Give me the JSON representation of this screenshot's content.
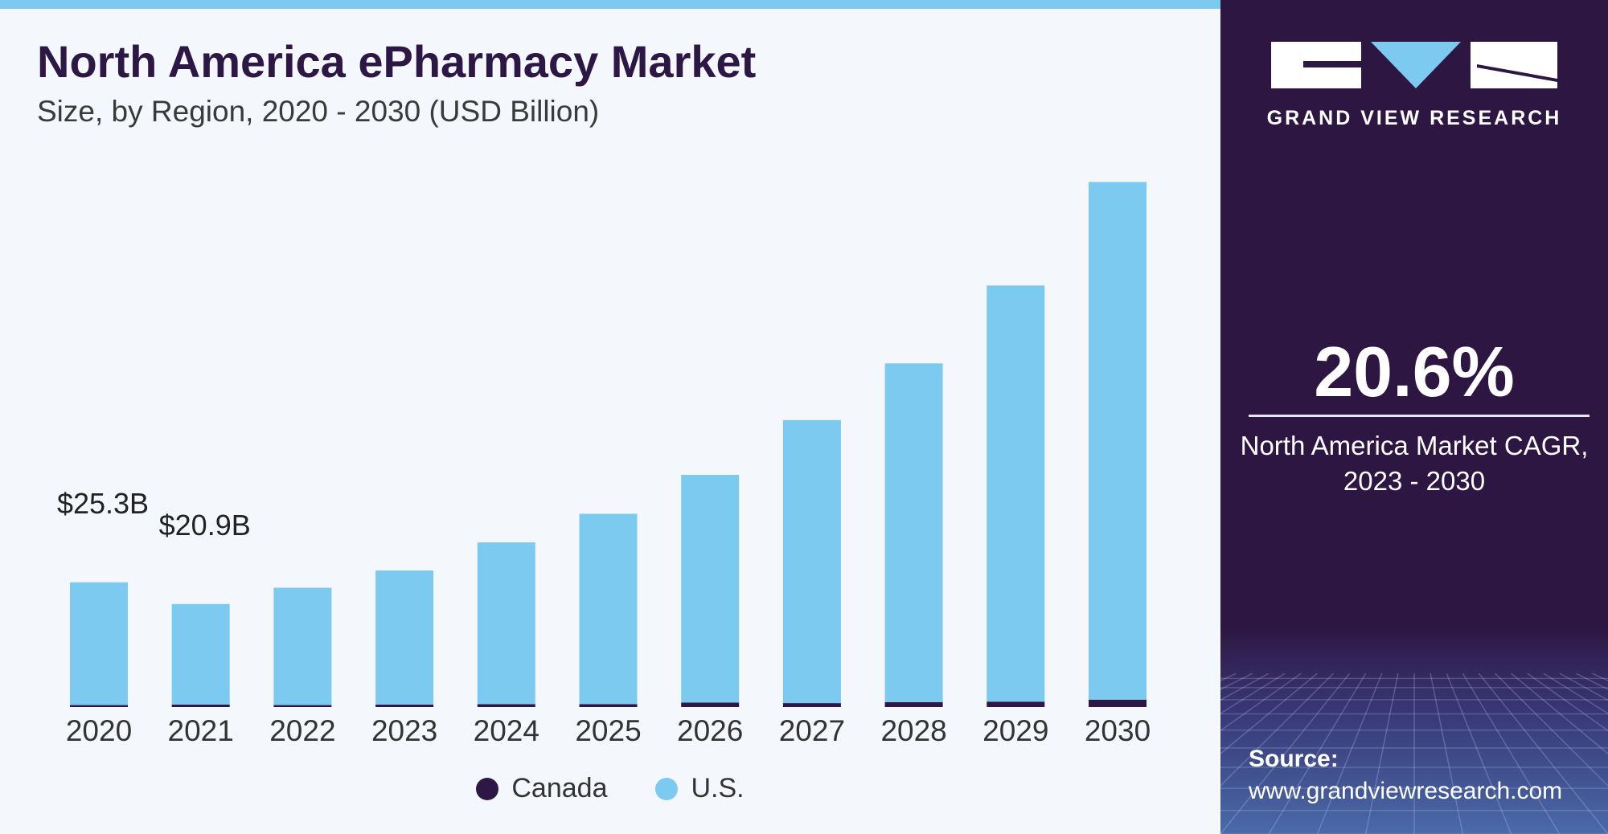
{
  "header": {
    "title": "North America ePharmacy Market",
    "subtitle": "Size, by Region, 2020 - 2030 (USD Billion)"
  },
  "colors": {
    "canada": "#2c1745",
    "us": "#7ccaf0",
    "panel": "#2d1641",
    "accent": "#7ccaf0"
  },
  "chart_data": {
    "type": "bar",
    "stacked": true,
    "categories": [
      "2020",
      "2021",
      "2022",
      "2023",
      "2024",
      "2025",
      "2026",
      "2027",
      "2028",
      "2029",
      "2030"
    ],
    "series": [
      {
        "name": "Canada",
        "values": [
          0.4,
          0.5,
          0.4,
          0.5,
          0.6,
          0.6,
          0.9,
          0.8,
          1.0,
          1.1,
          1.5
        ]
      },
      {
        "name": "U.S.",
        "values": [
          24.9,
          20.4,
          23.8,
          27.2,
          32.8,
          38.6,
          46.2,
          57.4,
          68.7,
          84.4,
          105.0
        ]
      }
    ],
    "annotations": [
      {
        "category": "2020",
        "label": "$25.3B"
      },
      {
        "category": "2021",
        "label": "$20.9B"
      }
    ],
    "ylim": [
      0,
      110
    ],
    "grid": false,
    "legend": "bottom-center"
  },
  "sidebar": {
    "brand": "GRAND VIEW RESEARCH",
    "cagr_value": "20.6%",
    "cagr_label_line1": "North America Market CAGR,",
    "cagr_label_line2": "2023 - 2030",
    "source_label": "Source:",
    "source_url": "www.grandviewresearch.com"
  }
}
